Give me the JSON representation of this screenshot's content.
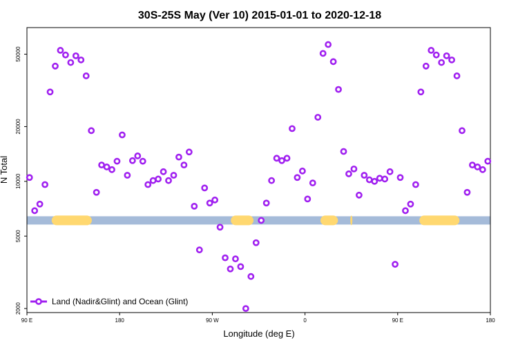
{
  "chart_data": {
    "type": "scatter",
    "title": "30S-25S May (Ver 10)   2015-01-01 to 2020-12-18",
    "xlabel": "Longitude (deg E)",
    "ylabel": "N Total",
    "xlim": [
      90,
      540
    ],
    "ylim": [
      1900,
      70000
    ],
    "y_scale": "log",
    "x_ticks": [
      {
        "value": 90,
        "label": "90 E"
      },
      {
        "value": 180,
        "label": "180"
      },
      {
        "value": 270,
        "label": "90 W"
      },
      {
        "value": 360,
        "label": "0"
      },
      {
        "value": 450,
        "label": "90 E"
      },
      {
        "value": 540,
        "label": "180"
      }
    ],
    "y_ticks": [
      {
        "value": 2000,
        "label": "2000"
      },
      {
        "value": 5000,
        "label": "5000"
      },
      {
        "value": 10000,
        "label": "10000"
      },
      {
        "value": 20000,
        "label": "20000"
      },
      {
        "value": 50000,
        "label": "50000"
      }
    ],
    "series": [
      {
        "name": "Land (Nadir&Glint) and Ocean (Glint)",
        "color": "#a020f0",
        "marker": "open-circle",
        "points": [
          [
            92.5,
            10500
          ],
          [
            97.5,
            6900
          ],
          [
            102.5,
            7500
          ],
          [
            107.5,
            9600
          ],
          [
            112.5,
            31000
          ],
          [
            117.5,
            43000
          ],
          [
            122.5,
            52500
          ],
          [
            127.5,
            49500
          ],
          [
            132.5,
            45000
          ],
          [
            137.5,
            49000
          ],
          [
            142.5,
            46500
          ],
          [
            147.5,
            38000
          ],
          [
            152.5,
            19000
          ],
          [
            157.5,
            8700
          ],
          [
            162.5,
            12300
          ],
          [
            167.5,
            12000
          ],
          [
            172.5,
            11600
          ],
          [
            177.5,
            12900
          ],
          [
            182.5,
            18000
          ],
          [
            187.5,
            10800
          ],
          [
            192.5,
            13000
          ],
          [
            197.5,
            13800
          ],
          [
            202.5,
            12900
          ],
          [
            207.5,
            9600
          ],
          [
            212.5,
            10100
          ],
          [
            217.5,
            10300
          ],
          [
            222.5,
            11300
          ],
          [
            227.5,
            10100
          ],
          [
            232.5,
            10800
          ],
          [
            237.5,
            13600
          ],
          [
            242.5,
            12300
          ],
          [
            247.5,
            14500
          ],
          [
            252.5,
            7300
          ],
          [
            257.5,
            4200
          ],
          [
            262.5,
            9200
          ],
          [
            267.5,
            7600
          ],
          [
            272.5,
            7900
          ],
          [
            277.5,
            5600
          ],
          [
            282.5,
            3800
          ],
          [
            287.5,
            3300
          ],
          [
            292.5,
            3750
          ],
          [
            297.5,
            3400
          ],
          [
            302.5,
            2000
          ],
          [
            307.5,
            3000
          ],
          [
            312.5,
            4600
          ],
          [
            317.5,
            6100
          ],
          [
            322.5,
            7600
          ],
          [
            327.5,
            10100
          ],
          [
            332.5,
            13400
          ],
          [
            337.5,
            13000
          ],
          [
            342.5,
            13400
          ],
          [
            347.5,
            19500
          ],
          [
            352.5,
            10500
          ],
          [
            357.5,
            11400
          ],
          [
            362.5,
            8000
          ],
          [
            367.5,
            9800
          ],
          [
            372.5,
            22500
          ],
          [
            377.5,
            50500
          ],
          [
            382.5,
            56500
          ],
          [
            387.5,
            45500
          ],
          [
            392.5,
            32000
          ],
          [
            397.5,
            14600
          ],
          [
            402.5,
            11000
          ],
          [
            407.5,
            11700
          ],
          [
            412.5,
            8400
          ],
          [
            417.5,
            10800
          ],
          [
            422.5,
            10200
          ],
          [
            427.5,
            10000
          ],
          [
            432.5,
            10400
          ],
          [
            437.5,
            10300
          ],
          [
            442.5,
            11300
          ],
          [
            447.5,
            3500
          ],
          [
            452.5,
            10500
          ],
          [
            457.5,
            6900
          ],
          [
            462.5,
            7500
          ],
          [
            467.5,
            9600
          ],
          [
            472.5,
            31000
          ],
          [
            477.5,
            43000
          ],
          [
            482.5,
            52500
          ],
          [
            487.5,
            49500
          ],
          [
            492.5,
            45000
          ],
          [
            497.5,
            49000
          ],
          [
            502.5,
            46500
          ],
          [
            507.5,
            38000
          ],
          [
            512.5,
            19000
          ],
          [
            517.5,
            8700
          ],
          [
            522.5,
            12300
          ],
          [
            527.5,
            12000
          ],
          [
            532.5,
            11600
          ],
          [
            537.5,
            12900
          ]
        ]
      }
    ],
    "band": {
      "y": 6100,
      "ocean_color": "#a5bbd9",
      "land_color": "#ffd870",
      "land_ranges": [
        [
          114,
          153
        ],
        [
          288,
          310
        ],
        [
          375,
          392
        ],
        [
          404,
          406
        ],
        [
          471,
          510
        ]
      ]
    },
    "legend": {
      "placement": "bottom-left"
    }
  }
}
